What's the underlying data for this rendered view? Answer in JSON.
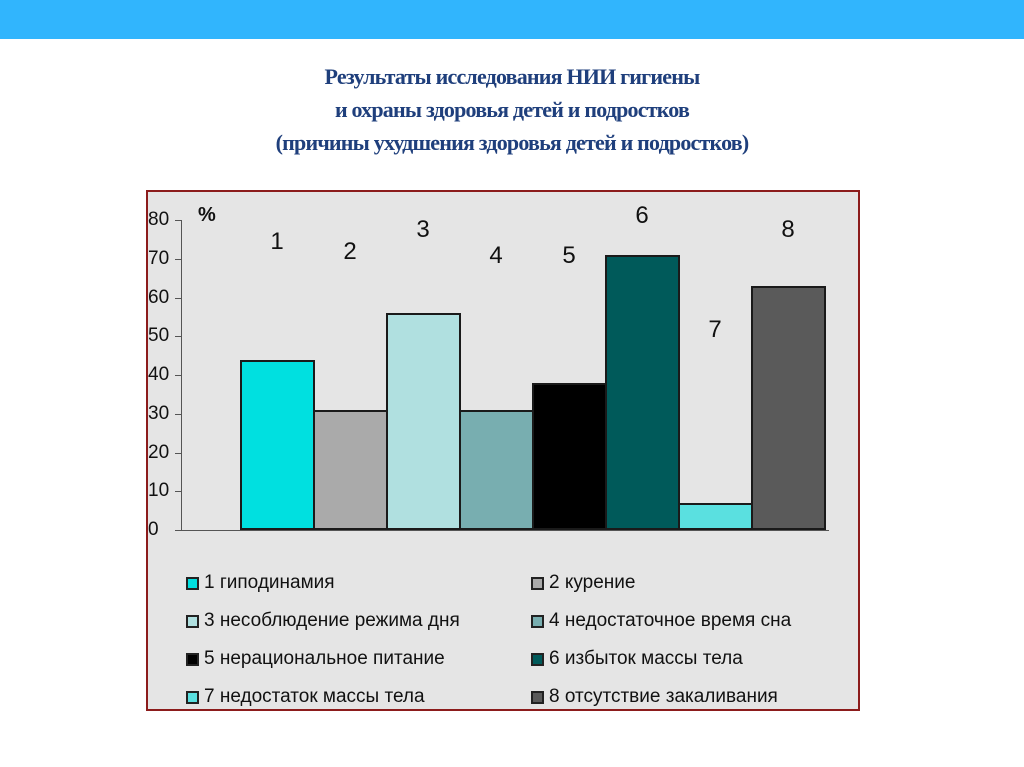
{
  "slide": {
    "topbar_color": "#31b5fd",
    "title_lines": [
      "Результаты исследования НИИ гигиены",
      "и охраны здоровья детей и подростков",
      "(причины ухудшения здоровья детей и подростков)"
    ]
  },
  "chart_data": {
    "type": "bar",
    "title": "Результаты исследования НИИ гигиены и охраны здоровья детей и подростков (причины ухудшения здоровья детей и подростков)",
    "xlabel": "",
    "ylabel": "%",
    "ylim": [
      0,
      80
    ],
    "yticks": [
      "0",
      "10",
      "20",
      "30",
      "40",
      "50",
      "60",
      "70",
      "80"
    ],
    "grid": false,
    "legend_position": "bottom",
    "categories": [
      "1",
      "2",
      "3",
      "4",
      "5",
      "6",
      "7",
      "8"
    ],
    "values": [
      44,
      31,
      56,
      31,
      38,
      71,
      7,
      63
    ],
    "colors": [
      "#00e0e0",
      "#aaaaaa",
      "#b0e0e0",
      "#78aeb0",
      "#000000",
      "#005a5a",
      "#5ae0e0",
      "#5a5a5a"
    ],
    "legend": [
      {
        "label": "1 гиподинамия",
        "color": "#00e0e0"
      },
      {
        "label": "2 курение",
        "color": "#aaaaaa"
      },
      {
        "label": "3 несоблюдение режима дня",
        "color": "#b0e0e0"
      },
      {
        "label": "4 недостаточное время сна",
        "color": "#78aeb0"
      },
      {
        "label": "5 нерациональное питание",
        "color": "#000000"
      },
      {
        "label": "6 избыток массы тела",
        "color": "#005a5a"
      },
      {
        "label": "7 недостаток массы тела",
        "color": "#5ae0e0"
      },
      {
        "label": "8 отсутствие закаливания",
        "color": "#5a5a5a"
      }
    ]
  }
}
